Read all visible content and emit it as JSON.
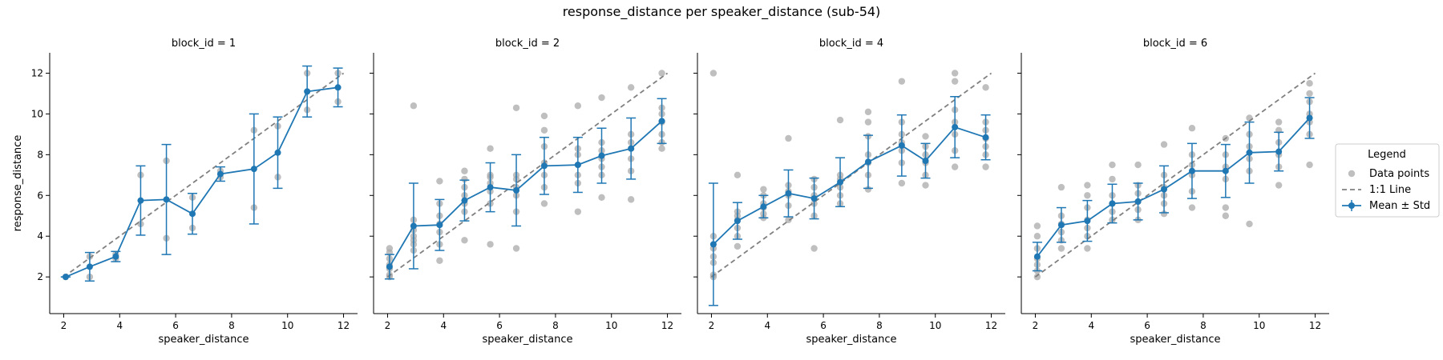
{
  "figure": {
    "title": "response_distance per speaker_distance (sub-54)"
  },
  "chart_data": {
    "type": "scatter",
    "xlabel": "speaker_distance",
    "ylabel": "response_distance",
    "xlim": [
      1.5,
      12.5
    ],
    "ylim": [
      0.2,
      13
    ],
    "xticks": [
      2,
      4,
      6,
      8,
      10,
      12
    ],
    "yticks": [
      2,
      4,
      6,
      8,
      10,
      12
    ],
    "grid": false,
    "colors": {
      "points": "#a9a9a9",
      "mean": "#1f77b4",
      "identity": "#808080"
    },
    "legend": {
      "title": "Legend",
      "placement": "right",
      "entries": [
        "Data points",
        "1:1 Line",
        "Mean ± Std"
      ]
    },
    "panels": [
      {
        "title": "block_id = 1",
        "points": [
          [
            2.07,
            2.0
          ],
          [
            2.93,
            2.0
          ],
          [
            2.93,
            3.0
          ],
          [
            3.86,
            2.9
          ],
          [
            3.86,
            3.1
          ],
          [
            4.75,
            4.6
          ],
          [
            4.75,
            7.0
          ],
          [
            5.67,
            3.9
          ],
          [
            5.67,
            7.7
          ],
          [
            6.6,
            4.4
          ],
          [
            6.6,
            5.9
          ],
          [
            7.6,
            6.9
          ],
          [
            7.6,
            7.2
          ],
          [
            8.8,
            5.4
          ],
          [
            8.8,
            9.2
          ],
          [
            9.65,
            6.9
          ],
          [
            9.65,
            9.4
          ],
          [
            10.7,
            10.2
          ],
          [
            10.7,
            12.0
          ],
          [
            11.8,
            10.6
          ],
          [
            11.8,
            12.0
          ]
        ],
        "mean": [
          [
            2.07,
            2.0
          ],
          [
            2.93,
            2.5
          ],
          [
            3.86,
            3.0
          ],
          [
            4.75,
            5.75
          ],
          [
            5.67,
            5.8
          ],
          [
            6.6,
            5.1
          ],
          [
            7.6,
            7.05
          ],
          [
            8.8,
            7.3
          ],
          [
            9.65,
            8.1
          ],
          [
            10.7,
            11.1
          ],
          [
            11.8,
            11.3
          ]
        ],
        "std": [
          0,
          0.7,
          0.25,
          1.7,
          2.7,
          1.0,
          0.35,
          2.7,
          1.75,
          1.25,
          0.95
        ]
      },
      {
        "title": "block_id = 2",
        "points": [
          [
            2.07,
            2.0
          ],
          [
            2.07,
            2.1
          ],
          [
            2.07,
            2.4
          ],
          [
            2.07,
            2.6
          ],
          [
            2.07,
            2.9
          ],
          [
            2.07,
            3.2
          ],
          [
            2.07,
            3.4
          ],
          [
            2.93,
            3.3
          ],
          [
            2.93,
            3.6
          ],
          [
            2.93,
            3.8
          ],
          [
            2.93,
            4.0
          ],
          [
            2.93,
            4.3
          ],
          [
            2.93,
            4.8
          ],
          [
            2.93,
            10.4
          ],
          [
            3.86,
            2.8
          ],
          [
            3.86,
            3.6
          ],
          [
            3.86,
            4.2
          ],
          [
            3.86,
            4.6
          ],
          [
            3.86,
            5.0
          ],
          [
            3.86,
            5.6
          ],
          [
            3.86,
            6.7
          ],
          [
            4.75,
            3.8
          ],
          [
            4.75,
            5.2
          ],
          [
            4.75,
            5.6
          ],
          [
            4.75,
            6.0
          ],
          [
            4.75,
            6.4
          ],
          [
            4.75,
            6.8
          ],
          [
            4.75,
            7.2
          ],
          [
            5.67,
            3.6
          ],
          [
            5.67,
            5.6
          ],
          [
            5.67,
            6.2
          ],
          [
            5.67,
            6.6
          ],
          [
            5.67,
            6.9
          ],
          [
            5.67,
            7.0
          ],
          [
            5.67,
            8.3
          ],
          [
            6.6,
            3.4
          ],
          [
            6.6,
            5.2
          ],
          [
            6.6,
            6.0
          ],
          [
            6.6,
            6.4
          ],
          [
            6.6,
            6.8
          ],
          [
            6.6,
            7.0
          ],
          [
            6.6,
            10.3
          ],
          [
            7.6,
            5.6
          ],
          [
            7.6,
            6.4
          ],
          [
            7.6,
            7.0
          ],
          [
            7.6,
            7.6
          ],
          [
            7.6,
            8.4
          ],
          [
            7.6,
            9.2
          ],
          [
            7.6,
            9.9
          ],
          [
            8.8,
            5.2
          ],
          [
            8.8,
            6.6
          ],
          [
            8.8,
            7.0
          ],
          [
            8.8,
            7.5
          ],
          [
            8.8,
            8.0
          ],
          [
            8.8,
            8.3
          ],
          [
            8.8,
            10.4
          ],
          [
            9.65,
            5.9
          ],
          [
            9.65,
            7.0
          ],
          [
            9.65,
            7.4
          ],
          [
            9.65,
            7.8
          ],
          [
            9.65,
            8.2
          ],
          [
            9.65,
            8.6
          ],
          [
            9.65,
            10.8
          ],
          [
            10.7,
            5.8
          ],
          [
            10.7,
            7.2
          ],
          [
            10.7,
            7.8
          ],
          [
            10.7,
            8.3
          ],
          [
            10.7,
            8.6
          ],
          [
            10.7,
            9.0
          ],
          [
            10.7,
            11.3
          ],
          [
            11.8,
            8.3
          ],
          [
            11.8,
            8.6
          ],
          [
            11.8,
            9.0
          ],
          [
            11.8,
            9.6
          ],
          [
            11.8,
            10.0
          ],
          [
            11.8,
            10.3
          ],
          [
            11.8,
            12.0
          ]
        ],
        "mean": [
          [
            2.07,
            2.5
          ],
          [
            2.93,
            4.5
          ],
          [
            3.86,
            4.55
          ],
          [
            4.75,
            5.75
          ],
          [
            5.67,
            6.4
          ],
          [
            6.6,
            6.25
          ],
          [
            7.6,
            7.45
          ],
          [
            8.8,
            7.5
          ],
          [
            9.65,
            7.95
          ],
          [
            10.7,
            8.3
          ],
          [
            11.8,
            9.65
          ]
        ],
        "std": [
          0.6,
          2.1,
          1.25,
          1.0,
          1.2,
          1.75,
          1.4,
          1.35,
          1.35,
          1.5,
          1.1
        ]
      },
      {
        "title": "block_id = 4",
        "points": [
          [
            2.07,
            2.0
          ],
          [
            2.07,
            2.1
          ],
          [
            2.07,
            2.7
          ],
          [
            2.07,
            3.0
          ],
          [
            2.07,
            3.4
          ],
          [
            2.07,
            4.0
          ],
          [
            2.07,
            12.0
          ],
          [
            2.93,
            3.5
          ],
          [
            2.93,
            4.0
          ],
          [
            2.93,
            4.4
          ],
          [
            2.93,
            4.8
          ],
          [
            2.93,
            5.0
          ],
          [
            2.93,
            5.2
          ],
          [
            2.93,
            7.0
          ],
          [
            3.86,
            4.9
          ],
          [
            3.86,
            5.1
          ],
          [
            3.86,
            5.4
          ],
          [
            3.86,
            5.6
          ],
          [
            3.86,
            6.0
          ],
          [
            3.86,
            6.3
          ],
          [
            4.75,
            4.8
          ],
          [
            4.75,
            5.5
          ],
          [
            4.75,
            6.0
          ],
          [
            4.75,
            6.2
          ],
          [
            4.75,
            6.5
          ],
          [
            4.75,
            8.8
          ],
          [
            5.67,
            3.4
          ],
          [
            5.67,
            5.0
          ],
          [
            5.67,
            5.6
          ],
          [
            5.67,
            6.0
          ],
          [
            5.67,
            6.4
          ],
          [
            5.67,
            6.8
          ],
          [
            6.6,
            5.6
          ],
          [
            6.6,
            6.0
          ],
          [
            6.6,
            6.4
          ],
          [
            6.6,
            6.8
          ],
          [
            6.6,
            7.0
          ],
          [
            6.6,
            9.7
          ],
          [
            7.6,
            6.3
          ],
          [
            7.6,
            7.0
          ],
          [
            7.6,
            7.6
          ],
          [
            7.6,
            8.0
          ],
          [
            7.6,
            8.9
          ],
          [
            7.6,
            9.6
          ],
          [
            7.6,
            10.1
          ],
          [
            8.8,
            6.6
          ],
          [
            8.8,
            7.6
          ],
          [
            8.8,
            8.2
          ],
          [
            8.8,
            8.6
          ],
          [
            8.8,
            9.0
          ],
          [
            8.8,
            9.6
          ],
          [
            8.8,
            11.6
          ],
          [
            9.65,
            6.5
          ],
          [
            9.65,
            7.0
          ],
          [
            9.65,
            7.6
          ],
          [
            9.65,
            8.0
          ],
          [
            9.65,
            8.4
          ],
          [
            9.65,
            8.9
          ],
          [
            10.7,
            7.4
          ],
          [
            10.7,
            8.2
          ],
          [
            10.7,
            9.0
          ],
          [
            10.7,
            9.6
          ],
          [
            10.7,
            10.2
          ],
          [
            10.7,
            11.6
          ],
          [
            10.7,
            12.0
          ],
          [
            11.8,
            7.4
          ],
          [
            11.8,
            8.0
          ],
          [
            11.8,
            8.4
          ],
          [
            11.8,
            8.8
          ],
          [
            11.8,
            9.2
          ],
          [
            11.8,
            9.6
          ],
          [
            11.8,
            11.3
          ]
        ],
        "mean": [
          [
            2.07,
            3.6
          ],
          [
            2.93,
            4.75
          ],
          [
            3.86,
            5.45
          ],
          [
            4.75,
            6.1
          ],
          [
            5.67,
            5.85
          ],
          [
            6.6,
            6.65
          ],
          [
            7.6,
            7.65
          ],
          [
            8.8,
            8.45
          ],
          [
            9.65,
            7.7
          ],
          [
            10.7,
            9.35
          ],
          [
            11.8,
            8.85
          ]
        ],
        "std": [
          3.0,
          0.9,
          0.55,
          1.15,
          1.0,
          1.2,
          1.3,
          1.5,
          0.85,
          1.5,
          1.1
        ]
      },
      {
        "title": "block_id = 6",
        "points": [
          [
            2.07,
            2.0
          ],
          [
            2.07,
            2.3
          ],
          [
            2.07,
            2.6
          ],
          [
            2.07,
            2.9
          ],
          [
            2.07,
            3.4
          ],
          [
            2.07,
            4.0
          ],
          [
            2.07,
            4.5
          ],
          [
            2.93,
            3.4
          ],
          [
            2.93,
            3.8
          ],
          [
            2.93,
            4.2
          ],
          [
            2.93,
            4.6
          ],
          [
            2.93,
            5.0
          ],
          [
            2.93,
            6.4
          ],
          [
            3.86,
            3.4
          ],
          [
            3.86,
            4.0
          ],
          [
            3.86,
            4.4
          ],
          [
            3.86,
            4.8
          ],
          [
            3.86,
            5.4
          ],
          [
            3.86,
            6.0
          ],
          [
            3.86,
            6.5
          ],
          [
            4.75,
            4.8
          ],
          [
            4.75,
            5.2
          ],
          [
            4.75,
            5.6
          ],
          [
            4.75,
            6.0
          ],
          [
            4.75,
            6.8
          ],
          [
            4.75,
            7.5
          ],
          [
            5.67,
            4.8
          ],
          [
            5.67,
            5.3
          ],
          [
            5.67,
            5.7
          ],
          [
            5.67,
            6.1
          ],
          [
            5.67,
            6.5
          ],
          [
            5.67,
            7.5
          ],
          [
            6.6,
            5.1
          ],
          [
            6.6,
            5.6
          ],
          [
            6.6,
            6.0
          ],
          [
            6.6,
            6.4
          ],
          [
            6.6,
            7.0
          ],
          [
            6.6,
            8.5
          ],
          [
            7.6,
            5.4
          ],
          [
            7.6,
            6.2
          ],
          [
            7.6,
            7.0
          ],
          [
            7.6,
            7.5
          ],
          [
            7.6,
            8.0
          ],
          [
            7.6,
            9.3
          ],
          [
            8.8,
            5.0
          ],
          [
            8.8,
            5.4
          ],
          [
            8.8,
            6.8
          ],
          [
            8.8,
            7.4
          ],
          [
            8.8,
            8.0
          ],
          [
            8.8,
            8.8
          ],
          [
            9.65,
            4.6
          ],
          [
            9.65,
            7.2
          ],
          [
            9.65,
            7.8
          ],
          [
            9.65,
            8.4
          ],
          [
            9.65,
            9.0
          ],
          [
            9.65,
            9.8
          ],
          [
            10.7,
            6.5
          ],
          [
            10.7,
            7.4
          ],
          [
            10.7,
            8.0
          ],
          [
            10.7,
            8.6
          ],
          [
            10.7,
            9.2
          ],
          [
            10.7,
            9.6
          ],
          [
            11.8,
            7.5
          ],
          [
            11.8,
            9.0
          ],
          [
            11.8,
            9.6
          ],
          [
            11.8,
            10.0
          ],
          [
            11.8,
            10.6
          ],
          [
            11.8,
            11.0
          ],
          [
            11.8,
            11.5
          ]
        ],
        "mean": [
          [
            2.07,
            3.0
          ],
          [
            2.93,
            4.55
          ],
          [
            3.86,
            4.75
          ],
          [
            4.75,
            5.6
          ],
          [
            5.67,
            5.7
          ],
          [
            6.6,
            6.3
          ],
          [
            7.6,
            7.2
          ],
          [
            8.8,
            7.2
          ],
          [
            9.65,
            8.1
          ],
          [
            10.7,
            8.15
          ],
          [
            11.8,
            9.8
          ]
        ],
        "std": [
          0.7,
          0.85,
          1.0,
          0.95,
          0.9,
          1.15,
          1.35,
          1.3,
          1.5,
          0.95,
          1.0
        ]
      }
    ]
  }
}
